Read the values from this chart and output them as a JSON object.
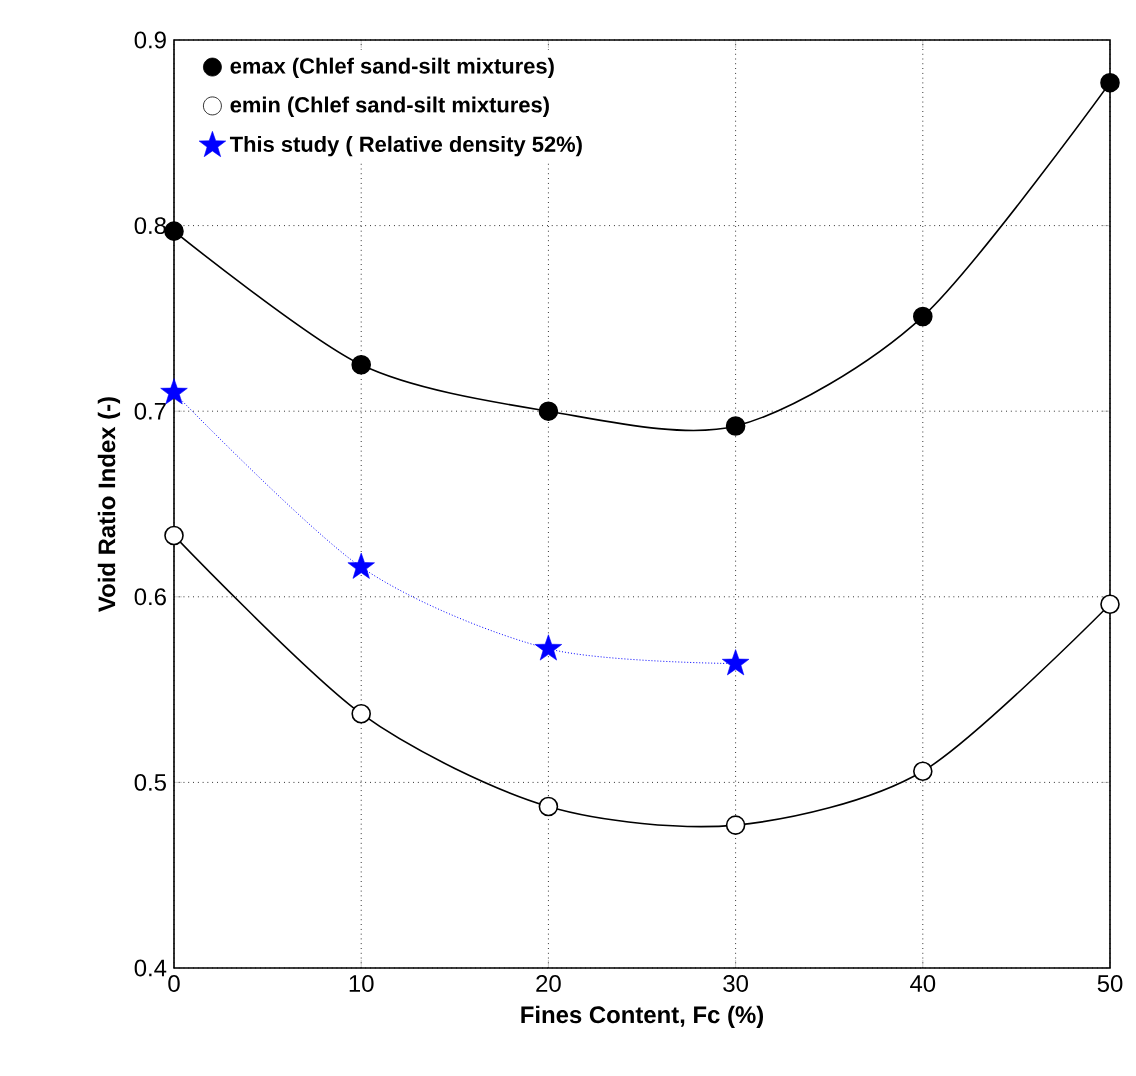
{
  "chart_data": {
    "type": "line",
    "xlabel": "Fines Content, Fc (%)",
    "ylabel": "Void Ratio Index (-)",
    "x": [
      0,
      10,
      20,
      30,
      40,
      50
    ],
    "series": [
      {
        "name": "emax (Chlef sand-silt mixtures)",
        "color": "#000000",
        "marker": "circle",
        "line_style": "solid",
        "values": [
          0.797,
          0.725,
          0.7,
          0.692,
          0.751,
          0.877
        ]
      },
      {
        "name": "emin (Chlef sand-silt mixtures)",
        "color": "#000000",
        "marker": "circle",
        "line_style": "solid",
        "values": [
          0.633,
          0.537,
          0.487,
          0.477,
          0.506,
          0.596
        ]
      },
      {
        "name": "This study ( Relative density 52%)",
        "color": "#0000ff",
        "marker": "star",
        "line_style": "dotted",
        "x": [
          0,
          10,
          20,
          30
        ],
        "values": [
          0.71,
          0.616,
          0.572,
          0.564
        ]
      }
    ],
    "xlim": [
      0,
      50
    ],
    "ylim": [
      0.4,
      0.9
    ],
    "xticks": [
      0,
      10,
      20,
      30,
      40,
      50
    ],
    "yticks": [
      0.4,
      0.5,
      0.6,
      0.7,
      0.8,
      0.9
    ],
    "grid": true,
    "legend": "top left"
  }
}
